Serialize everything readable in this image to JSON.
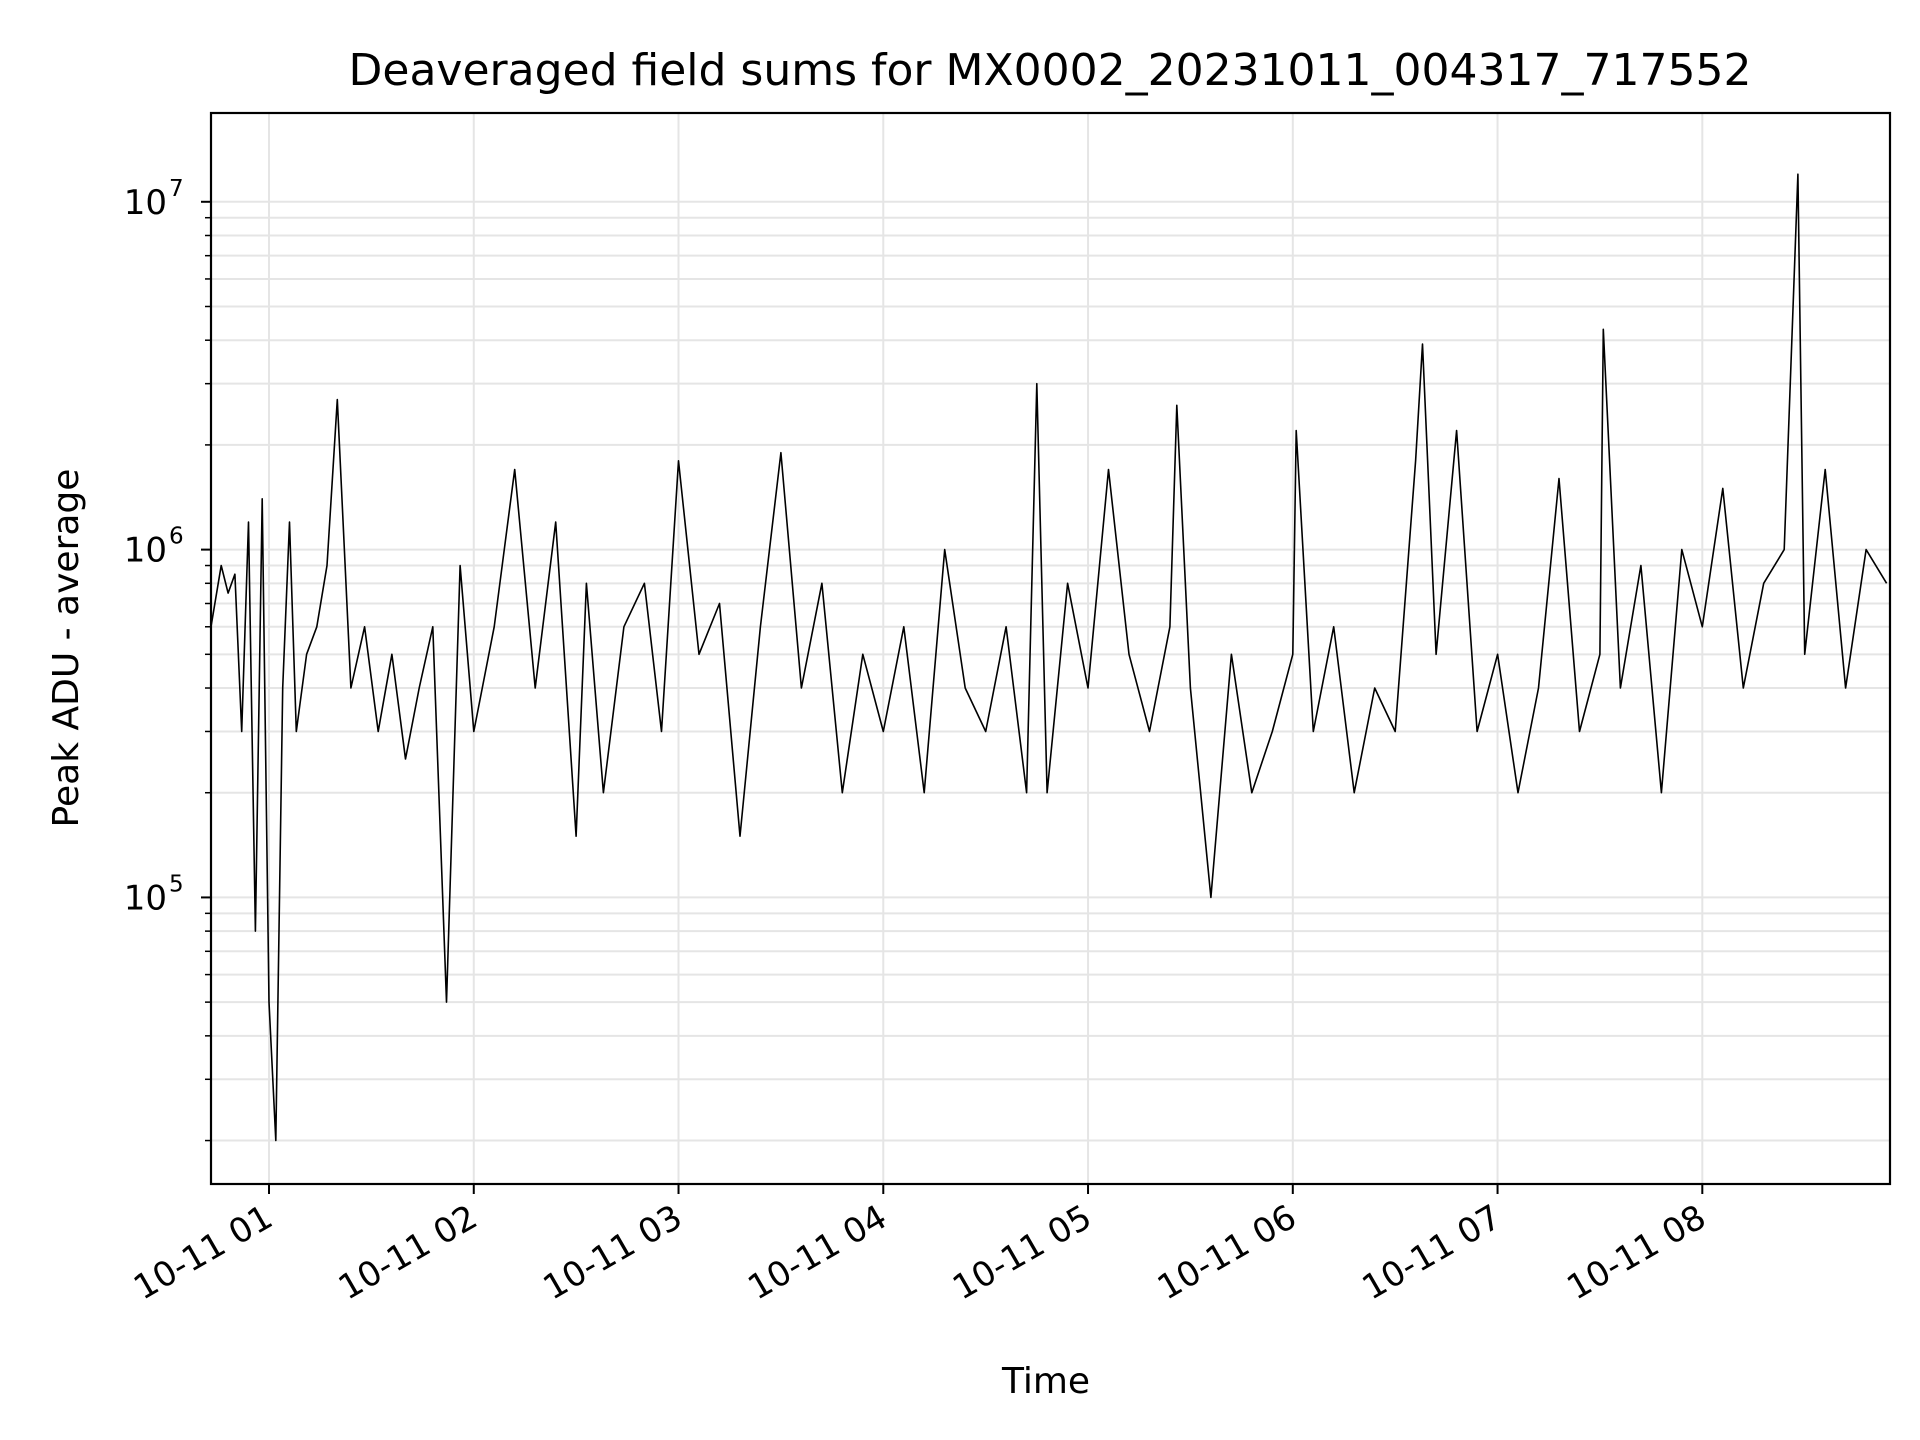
{
  "chart_data": {
    "type": "line",
    "title": "Deaveraged field sums for MX0002_20231011_004317_717552",
    "xlabel": "Time",
    "ylabel": "Peak ADU - average",
    "y_scale": "log",
    "ylim": [
      15000,
      18000000
    ],
    "xlim": [
      "2023-10-11 00:43",
      "2023-10-11 08:55"
    ],
    "x_ticks": [
      {
        "time": "2023-10-11 01:00",
        "label": "10-11 01"
      },
      {
        "time": "2023-10-11 02:00",
        "label": "10-11 02"
      },
      {
        "time": "2023-10-11 03:00",
        "label": "10-11 03"
      },
      {
        "time": "2023-10-11 04:00",
        "label": "10-11 04"
      },
      {
        "time": "2023-10-11 05:00",
        "label": "10-11 05"
      },
      {
        "time": "2023-10-11 06:00",
        "label": "10-11 06"
      },
      {
        "time": "2023-10-11 07:00",
        "label": "10-11 07"
      },
      {
        "time": "2023-10-11 08:00",
        "label": "10-11 08"
      }
    ],
    "y_ticks": [
      {
        "value": 100000,
        "base": "10",
        "exponent": "5"
      },
      {
        "value": 1000000,
        "base": "10",
        "exponent": "6"
      },
      {
        "value": 10000000,
        "base": "10",
        "exponent": "7"
      }
    ],
    "grid": true,
    "legend": "none",
    "line_color": "#000000",
    "grid_color": "#e5e5e5",
    "series": [
      {
        "x": [
          "2023-10-11 00:43",
          "2023-10-11 00:46",
          "2023-10-11 00:48",
          "2023-10-11 00:50",
          "2023-10-11 00:52",
          "2023-10-11 00:54",
          "2023-10-11 00:56",
          "2023-10-11 00:58",
          "2023-10-11 01:00",
          "2023-10-11 01:02",
          "2023-10-11 01:04",
          "2023-10-11 01:06",
          "2023-10-11 01:08",
          "2023-10-11 01:11",
          "2023-10-11 01:14",
          "2023-10-11 01:17",
          "2023-10-11 01:20",
          "2023-10-11 01:24",
          "2023-10-11 01:28",
          "2023-10-11 01:32",
          "2023-10-11 01:36",
          "2023-10-11 01:40",
          "2023-10-11 01:44",
          "2023-10-11 01:48",
          "2023-10-11 01:52",
          "2023-10-11 01:56",
          "2023-10-11 02:00",
          "2023-10-11 02:06",
          "2023-10-11 02:12",
          "2023-10-11 02:18",
          "2023-10-11 02:24",
          "2023-10-11 02:30",
          "2023-10-11 02:33",
          "2023-10-11 02:38",
          "2023-10-11 02:44",
          "2023-10-11 02:50",
          "2023-10-11 02:55",
          "2023-10-11 03:00",
          "2023-10-11 03:06",
          "2023-10-11 03:12",
          "2023-10-11 03:18",
          "2023-10-11 03:24",
          "2023-10-11 03:30",
          "2023-10-11 03:36",
          "2023-10-11 03:42",
          "2023-10-11 03:48",
          "2023-10-11 03:54",
          "2023-10-11 04:00",
          "2023-10-11 04:06",
          "2023-10-11 04:12",
          "2023-10-11 04:18",
          "2023-10-11 04:24",
          "2023-10-11 04:30",
          "2023-10-11 04:36",
          "2023-10-11 04:42",
          "2023-10-11 04:45",
          "2023-10-11 04:48",
          "2023-10-11 04:54",
          "2023-10-11 05:00",
          "2023-10-11 05:06",
          "2023-10-11 05:12",
          "2023-10-11 05:18",
          "2023-10-11 05:24",
          "2023-10-11 05:26",
          "2023-10-11 05:30",
          "2023-10-11 05:36",
          "2023-10-11 05:42",
          "2023-10-11 05:48",
          "2023-10-11 05:54",
          "2023-10-11 06:00",
          "2023-10-11 06:01",
          "2023-10-11 06:06",
          "2023-10-11 06:12",
          "2023-10-11 06:18",
          "2023-10-11 06:24",
          "2023-10-11 06:30",
          "2023-10-11 06:36",
          "2023-10-11 06:38",
          "2023-10-11 06:42",
          "2023-10-11 06:48",
          "2023-10-11 06:54",
          "2023-10-11 07:00",
          "2023-10-11 07:06",
          "2023-10-11 07:12",
          "2023-10-11 07:18",
          "2023-10-11 07:24",
          "2023-10-11 07:30",
          "2023-10-11 07:31",
          "2023-10-11 07:36",
          "2023-10-11 07:42",
          "2023-10-11 07:48",
          "2023-10-11 07:54",
          "2023-10-11 08:00",
          "2023-10-11 08:06",
          "2023-10-11 08:12",
          "2023-10-11 08:18",
          "2023-10-11 08:24",
          "2023-10-11 08:28",
          "2023-10-11 08:30",
          "2023-10-11 08:36",
          "2023-10-11 08:42",
          "2023-10-11 08:48",
          "2023-10-11 08:54"
        ],
        "y": [
          600000,
          900000,
          750000,
          850000,
          300000,
          1200000,
          80000,
          1400000,
          50000,
          20000,
          400000,
          1200000,
          300000,
          500000,
          600000,
          900000,
          2700000,
          400000,
          600000,
          300000,
          500000,
          250000,
          400000,
          600000,
          50000,
          900000,
          300000,
          600000,
          1700000,
          400000,
          1200000,
          150000,
          800000,
          200000,
          600000,
          800000,
          300000,
          1800000,
          500000,
          700000,
          150000,
          600000,
          1900000,
          400000,
          800000,
          200000,
          500000,
          300000,
          600000,
          200000,
          1000000,
          400000,
          300000,
          600000,
          200000,
          3000000,
          200000,
          800000,
          400000,
          1700000,
          500000,
          300000,
          600000,
          2600000,
          400000,
          100000,
          500000,
          200000,
          300000,
          500000,
          2200000,
          300000,
          600000,
          200000,
          400000,
          300000,
          1800000,
          3900000,
          500000,
          2200000,
          300000,
          500000,
          200000,
          400000,
          1600000,
          300000,
          500000,
          4300000,
          400000,
          900000,
          200000,
          1000000,
          600000,
          1500000,
          400000,
          800000,
          1000000,
          12000000,
          500000,
          1700000,
          400000,
          1000000,
          800000
        ]
      }
    ]
  }
}
